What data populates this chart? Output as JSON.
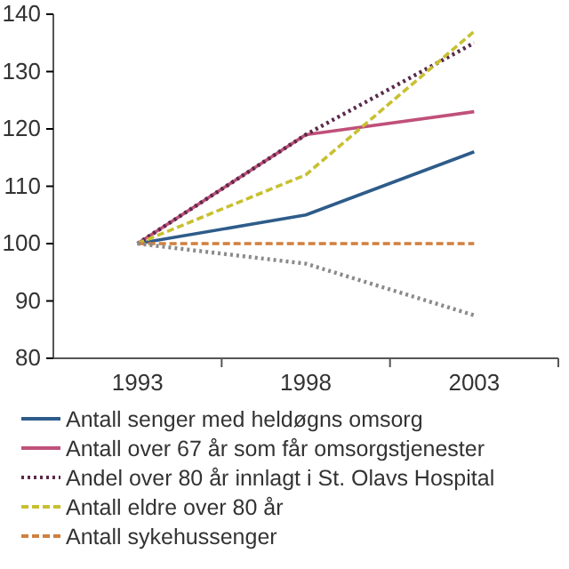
{
  "chart_data": {
    "type": "line",
    "categories": [
      "1993",
      "1998",
      "2003"
    ],
    "ylim": [
      80,
      140
    ],
    "yticks": [
      80,
      90,
      100,
      110,
      120,
      130,
      140
    ],
    "grid": false,
    "legend": "bottom",
    "marker": "none",
    "series": [
      {
        "name": "Antall senger med heldøgns omsorg",
        "color": "#2e5c8a",
        "values": [
          100,
          105,
          116
        ],
        "line_style": "solid"
      },
      {
        "name": "Antall over 67 år som får omsorgstjenester",
        "color": "#c0507a",
        "values": [
          100,
          119,
          123
        ],
        "line_style": "solid"
      },
      {
        "name": "Andel over 80 år innlagt i St. Olavs Hospital",
        "color": "#5a2a4a",
        "values": [
          100,
          119,
          135
        ],
        "line_style": "dotted"
      },
      {
        "name": "Antall eldre over 80 år",
        "color": "#c8c030",
        "values": [
          100,
          112,
          137
        ],
        "line_style": "dashed"
      },
      {
        "name": "Antall sykehussenger",
        "color": "#d08040",
        "values": [
          100,
          100,
          100
        ],
        "line_style": "dashed"
      },
      {
        "color": "#8a8a8a",
        "values": [
          100,
          96.5,
          87.5
        ],
        "line_style": "dotted"
      }
    ]
  }
}
